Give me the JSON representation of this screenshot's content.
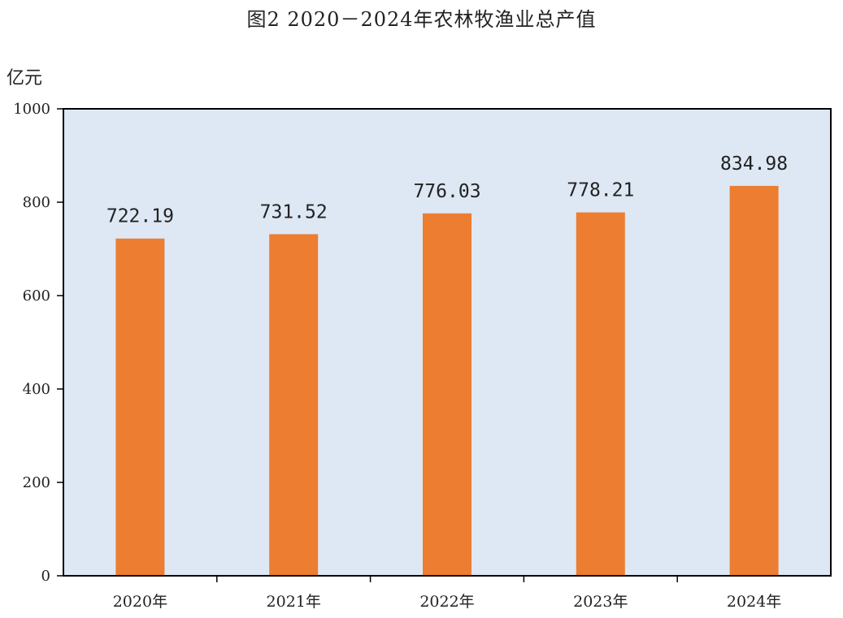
{
  "title": "图2   2020－2024年农林牧渔业总产值",
  "colors": {
    "plot_bg": "#dde8f4",
    "bar": "#ed7d31",
    "axis": "#000000"
  },
  "chart_data": {
    "type": "bar",
    "title": "图2   2020－2024年农林牧渔业总产值",
    "ylabel": "亿元",
    "xlabel": "",
    "categories": [
      "2020年",
      "2021年",
      "2022年",
      "2023年",
      "2024年"
    ],
    "values": [
      722.19,
      731.52,
      776.03,
      778.21,
      834.98
    ],
    "value_labels": [
      "722.19",
      "731.52",
      "776.03",
      "778.21",
      "834.98"
    ],
    "ylim": [
      0,
      1000
    ],
    "yticks": [
      0,
      200,
      400,
      600,
      800,
      1000
    ],
    "grid": false,
    "legend": "none"
  }
}
